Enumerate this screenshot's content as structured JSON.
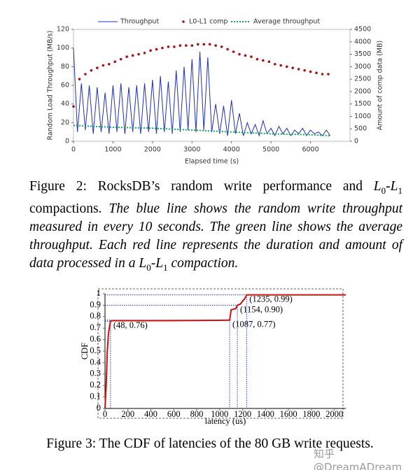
{
  "chart_data": [
    {
      "type": "line",
      "x_label": "Elapsed time (s)",
      "y_label": "Random Load Throughput (MB/s)",
      "y2_label": "Amount of comp data (MB)",
      "xlim": [
        0,
        7000
      ],
      "xticks": [
        0,
        1000,
        2000,
        3000,
        4000,
        5000,
        6000
      ],
      "ylim": [
        0,
        120
      ],
      "yticks": [
        0,
        20,
        40,
        60,
        80,
        100,
        120
      ],
      "y2lim": [
        0,
        4500
      ],
      "y2ticks": [
        0,
        500,
        1000,
        1500,
        2000,
        2500,
        3000,
        3500,
        4000,
        4500
      ],
      "legend": "top",
      "grid": false,
      "series": [
        {
          "name": "Throughput",
          "color": "#1f2fbf",
          "style": "line",
          "x": [
            0,
            100,
            200,
            300,
            400,
            500,
            600,
            700,
            800,
            900,
            1000,
            1100,
            1200,
            1300,
            1400,
            1500,
            1600,
            1700,
            1800,
            1900,
            2000,
            2100,
            2200,
            2300,
            2400,
            2500,
            2600,
            2700,
            2800,
            2900,
            3000,
            3100,
            3200,
            3300,
            3400,
            3500,
            3600,
            3700,
            3800,
            3900,
            4000,
            4100,
            4200,
            4300,
            4400,
            4500,
            4600,
            4700,
            4800,
            4900,
            5000,
            5100,
            5200,
            5300,
            5400,
            5500,
            5600,
            5700,
            5800,
            5900,
            6000,
            6100,
            6200,
            6300,
            6400,
            6500
          ],
          "values": [
            100,
            10,
            62,
            12,
            60,
            8,
            58,
            10,
            52,
            8,
            60,
            10,
            62,
            8,
            58,
            10,
            60,
            8,
            62,
            10,
            66,
            8,
            70,
            10,
            64,
            8,
            76,
            10,
            80,
            12,
            88,
            10,
            96,
            12,
            90,
            10,
            40,
            8,
            38,
            6,
            44,
            8,
            30,
            6,
            20,
            8,
            18,
            6,
            22,
            8,
            14,
            6,
            16,
            8,
            14,
            6,
            12,
            8,
            14,
            6,
            12,
            8,
            10,
            6,
            12,
            6
          ]
        },
        {
          "name": "L0-L1 comp",
          "color": "#a31515",
          "style": "dots",
          "axis": "y2",
          "x": [
            0,
            150,
            300,
            450,
            600,
            750,
            900,
            1050,
            1200,
            1350,
            1500,
            1650,
            1800,
            1950,
            2100,
            2250,
            2400,
            2550,
            2700,
            2850,
            3000,
            3150,
            3300,
            3450,
            3600,
            3750,
            3900,
            4050,
            4200,
            4350,
            4500,
            4650,
            4800,
            4950,
            5100,
            5250,
            5400,
            5550,
            5700,
            5850,
            6000,
            6150,
            6300,
            6450
          ],
          "values": [
            1400,
            2500,
            2700,
            2850,
            2950,
            3050,
            3100,
            3200,
            3300,
            3400,
            3450,
            3500,
            3550,
            3650,
            3700,
            3750,
            3800,
            3800,
            3850,
            3850,
            3850,
            3900,
            3900,
            3900,
            3850,
            3800,
            3700,
            3600,
            3500,
            3450,
            3400,
            3300,
            3250,
            3200,
            3100,
            3050,
            3000,
            2950,
            2900,
            2850,
            2800,
            2750,
            2700,
            2700
          ]
        },
        {
          "name": "Average throughput",
          "color": "#1aa35a",
          "style": "dotted",
          "x": [
            0,
            1000,
            2000,
            3000,
            4000,
            5000,
            6000,
            6500
          ],
          "values": [
            17,
            15,
            14,
            12,
            10,
            8,
            7,
            6
          ]
        }
      ]
    },
    {
      "type": "line",
      "x_label": "latency (us)",
      "y_label": "CDF",
      "xlim": [
        0,
        2100
      ],
      "xticks": [
        0,
        200,
        400,
        600,
        800,
        1000,
        1200,
        1400,
        1600,
        1800,
        2000
      ],
      "ylim": [
        0,
        1
      ],
      "yticks": [
        0,
        0.1,
        0.2,
        0.3,
        0.4,
        0.5,
        0.6,
        0.7,
        0.8,
        0.9,
        1
      ],
      "series": [
        {
          "color": "#d01010",
          "style": "line",
          "x": [
            0,
            10,
            20,
            30,
            40,
            48,
            60,
            100,
            500,
            1000,
            1080,
            1087,
            1100,
            1140,
            1154,
            1180,
            1220,
            1235,
            1300,
            2100
          ],
          "values": [
            0,
            0.2,
            0.5,
            0.65,
            0.72,
            0.76,
            0.765,
            0.765,
            0.765,
            0.768,
            0.77,
            0.77,
            0.86,
            0.87,
            0.9,
            0.91,
            0.96,
            0.99,
            0.99,
            0.99
          ]
        }
      ],
      "annotations": [
        {
          "x": 48,
          "y": 0.76,
          "label": "(48, 0.76)"
        },
        {
          "x": 1087,
          "y": 0.77,
          "label": "(1087, 0.77)"
        },
        {
          "x": 1154,
          "y": 0.9,
          "label": "(1154, 0.90)"
        },
        {
          "x": 1235,
          "y": 0.99,
          "label": "(1235, 0.99)"
        }
      ]
    }
  ],
  "figure2_caption": [
    "Figure 2: RocksDB’s random write performance and ",
    "L",
    "0",
    "-",
    "L",
    "1",
    " compactions. ",
    "The blue line shows the random write throughput measured in every 10 seconds. The green line shows the average throughput. Each red line represents the duration and amount of data processed in a ",
    "L",
    "0",
    "-",
    "L",
    "1",
    " compaction."
  ],
  "figure3_caption": "Figure 3: The CDF of latencies of the 80 GB write requests.",
  "watermark": "知乎 @DreamADream"
}
